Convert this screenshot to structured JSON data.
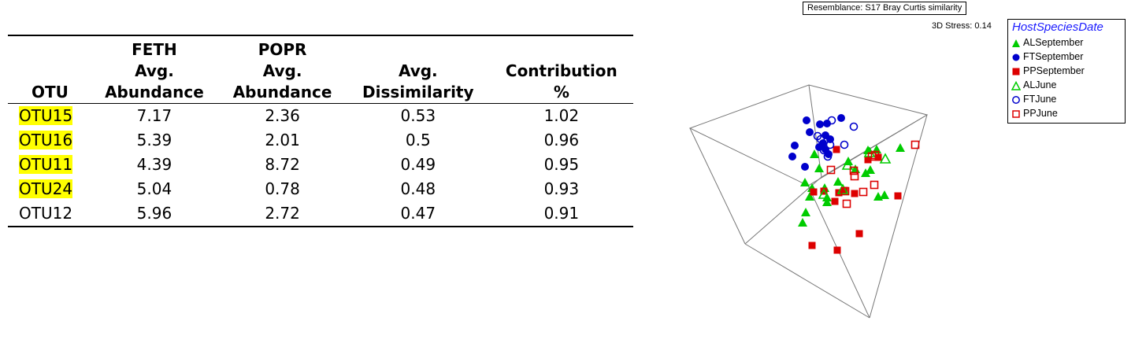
{
  "table": {
    "headers": {
      "otu": [
        "OTU"
      ],
      "feth": [
        "FETH",
        "Avg.",
        "Abundance"
      ],
      "popr": [
        "POPR",
        "Avg.",
        "Abundance"
      ],
      "diss": [
        "Avg.",
        "Dissimilarity"
      ],
      "contrib": [
        "Contribution",
        "%"
      ]
    },
    "rows": [
      {
        "otu": "OTU15",
        "feth": "7.17",
        "popr": "2.36",
        "diss": "0.53",
        "contrib": "1.02",
        "highlight": true
      },
      {
        "otu": "OTU16",
        "feth": "5.39",
        "popr": "2.01",
        "diss": "0.5",
        "contrib": "0.96",
        "highlight": true
      },
      {
        "otu": "OTU11",
        "feth": "4.39",
        "popr": "8.72",
        "diss": "0.49",
        "contrib": "0.95",
        "highlight": true
      },
      {
        "otu": "OTU24",
        "feth": "5.04",
        "popr": "0.78",
        "diss": "0.48",
        "contrib": "0.93",
        "highlight": true
      },
      {
        "otu": "OTU12",
        "feth": "5.96",
        "popr": "2.72",
        "diss": "0.47",
        "contrib": "0.91",
        "highlight": false
      }
    ],
    "highlight_color": "#ffff00"
  },
  "chart_data": {
    "type": "scatter",
    "title": "",
    "resemblance": "Resemblance: S17 Bray Curtis similarity",
    "stress": "3D Stress: 0.14",
    "legend_title": "HostSpeciesDate",
    "legend_position": "top-right",
    "axis_labels": "none",
    "series": [
      {
        "name": "ALSeptember",
        "marker": "triangle",
        "filled": true,
        "color": "#00cc00",
        "points": []
      },
      {
        "name": "FTSeptember",
        "marker": "circle",
        "filled": true,
        "color": "#0000cc",
        "points": []
      },
      {
        "name": "PPSeptember",
        "marker": "square",
        "filled": true,
        "color": "#dd0000",
        "points": []
      },
      {
        "name": "ALJune",
        "marker": "triangle",
        "filled": false,
        "color": "#00cc00",
        "points": []
      },
      {
        "name": "FTJune",
        "marker": "circle",
        "filled": false,
        "color": "#0000cc",
        "points": []
      },
      {
        "name": "PPJune",
        "marker": "square",
        "filled": false,
        "color": "#dd0000",
        "points": []
      }
    ]
  }
}
